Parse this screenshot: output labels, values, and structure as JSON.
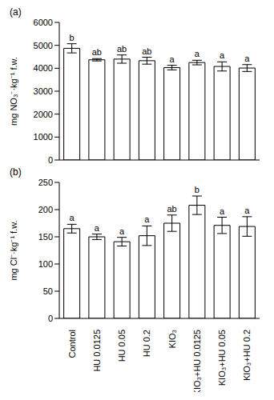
{
  "chart_data": [
    {
      "type": "bar",
      "title": "(a)",
      "y_label": "mg NO₃⁻·kg⁻¹ f.w.",
      "categories": [
        "Control",
        "HU 0.0125",
        "HU 0.05",
        "HU 0.2",
        "KIO₃",
        "KIO₃+HU 0.0125",
        "KIO₃+HU 0.05",
        "KIO₃+HU 0.2"
      ],
      "values": [
        4870,
        4370,
        4400,
        4330,
        4030,
        4250,
        4080,
        4010
      ],
      "errors": [
        200,
        50,
        180,
        150,
        100,
        100,
        200,
        150
      ],
      "annotations": [
        "b",
        "ab",
        "ab",
        "ab",
        "a",
        "a",
        "a",
        "a"
      ],
      "color": "#ffffff",
      "ylim": [
        0,
        6000
      ],
      "yticks": [
        0,
        1000,
        2000,
        3000,
        4000,
        5000,
        6000
      ],
      "tick_labels": "y"
    },
    {
      "type": "bar",
      "title": "(b)",
      "y_label": "mg Cl⁻·kg⁻¹ f.w.",
      "categories": [
        "Control",
        "HU 0.0125",
        "HU 0.05",
        "HU 0.2",
        "KIO₃",
        "KIO₃+HU 0.0125",
        "KIO₃+HU 0.05",
        "KIO₃+HU 0.2"
      ],
      "values": [
        165,
        150,
        141,
        152,
        175,
        208,
        171,
        169
      ],
      "errors": [
        8,
        5,
        8,
        18,
        15,
        17,
        15,
        18
      ],
      "annotations": [
        "a",
        "a",
        "a",
        "a",
        "ab",
        "b",
        "a",
        "a"
      ],
      "color": "#ffffff",
      "ylim": [
        0,
        250
      ],
      "yticks": [
        0,
        50,
        100,
        150,
        200,
        250
      ]
    }
  ]
}
